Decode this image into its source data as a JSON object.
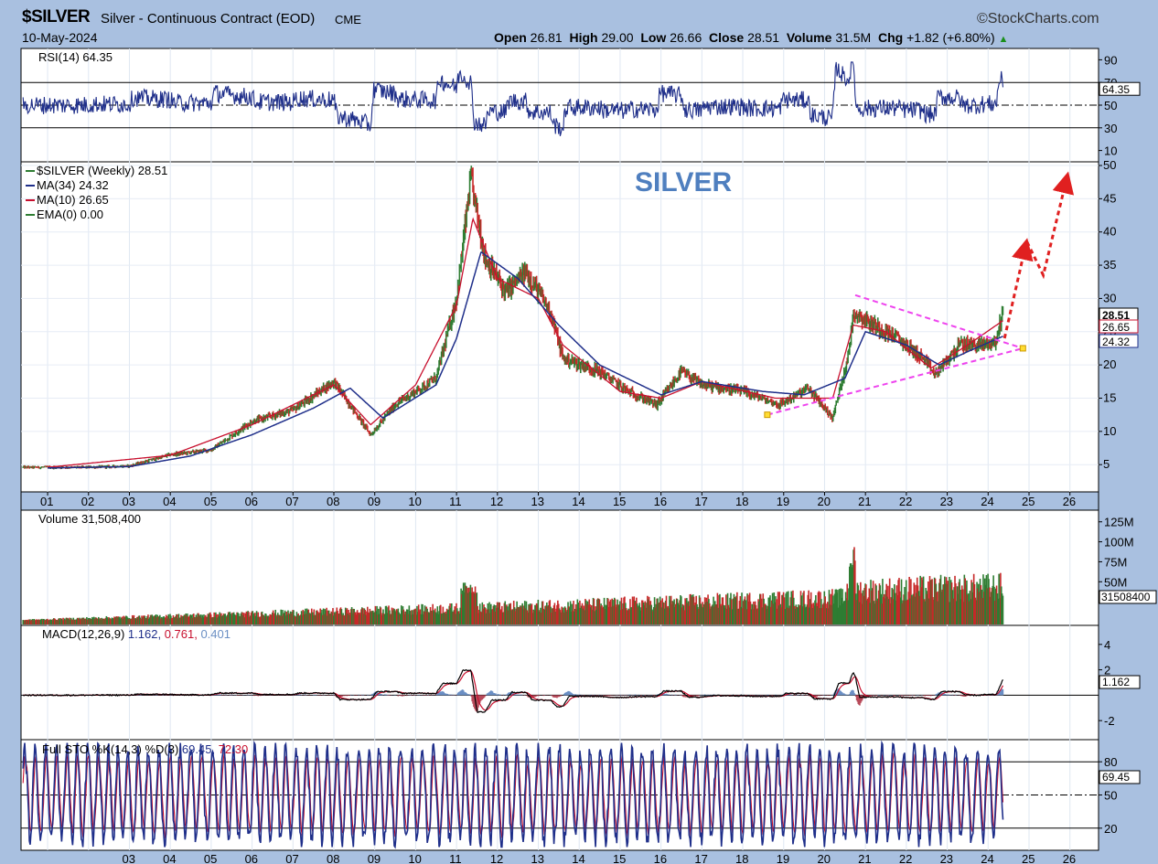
{
  "header": {
    "symbol": "$SILVER",
    "description": "Silver - Continuous Contract (EOD)",
    "exchange": "CME",
    "date": "10-May-2024",
    "brand": "StockCharts.com",
    "open_label": "Open",
    "open": "26.81",
    "high_label": "High",
    "high": "29.00",
    "low_label": "Low",
    "low": "26.66",
    "close_label": "Close",
    "close": "28.51",
    "volume_label": "Volume",
    "volume": "31.5M",
    "chg_label": "Chg",
    "chg": "+1.82 (+6.80%)",
    "chg_arrow": "▲"
  },
  "colors": {
    "panel_bg": "#ffffff",
    "frame_bg": "#a9c0e0",
    "up_bar": "#2e7d32",
    "down_bar": "#c62828",
    "ma_blue": "#1f2f8a",
    "ma_red": "#c8102e",
    "trend_magenta": "#ee44ee",
    "arrow_red": "#e02020",
    "title_blue": "#4f7fbf"
  },
  "chart_data": [
    {
      "type": "line",
      "panel": "rsi",
      "legend": "RSI(14) 64.35",
      "y_ticks": [
        "90",
        "70",
        "50",
        "30",
        "10"
      ],
      "last_value": "64.35",
      "levels": [
        70,
        50,
        30
      ],
      "ylim": [
        0,
        100
      ]
    },
    {
      "type": "candlestick",
      "panel": "price",
      "title": "SILVER",
      "legend": [
        "$SILVER (Weekly) 28.51",
        "MA(34) 24.32",
        "MA(10) 26.65",
        "EMA(0) 0.00"
      ],
      "x_ticks": [
        "01",
        "02",
        "03",
        "04",
        "05",
        "06",
        "07",
        "08",
        "09",
        "10",
        "11",
        "12",
        "13",
        "14",
        "15",
        "16",
        "17",
        "18",
        "19",
        "20",
        "21",
        "22",
        "23",
        "24",
        "25",
        "26"
      ],
      "y_ticks": [
        "50",
        "45",
        "40",
        "35",
        "30",
        "25",
        "20",
        "15",
        "10",
        "5"
      ],
      "ylim": [
        2,
        50
      ],
      "price_labels": [
        "28.51",
        "26.65",
        "24.32"
      ],
      "price_path": [
        [
          2001,
          4.6
        ],
        [
          2002,
          4.6
        ],
        [
          2003,
          4.8
        ],
        [
          2004,
          6.5
        ],
        [
          2005,
          7.2
        ],
        [
          2006,
          11.5
        ],
        [
          2007,
          13.2
        ],
        [
          2008,
          17.5
        ],
        [
          2008.9,
          9.5
        ],
        [
          2009.5,
          14
        ],
        [
          2010.5,
          18
        ],
        [
          2011.0,
          30
        ],
        [
          2011.35,
          48
        ],
        [
          2011.7,
          36
        ],
        [
          2012.2,
          31
        ],
        [
          2012.7,
          34
        ],
        [
          2013.3,
          28
        ],
        [
          2013.6,
          21
        ],
        [
          2014.5,
          19
        ],
        [
          2015.2,
          16
        ],
        [
          2015.9,
          14
        ],
        [
          2016.5,
          19
        ],
        [
          2017,
          17
        ],
        [
          2018,
          16
        ],
        [
          2018.9,
          14
        ],
        [
          2019.6,
          16.5
        ],
        [
          2020.2,
          12
        ],
        [
          2020.6,
          22
        ],
        [
          2020.7,
          28
        ],
        [
          2021.2,
          26
        ],
        [
          2021.8,
          24
        ],
        [
          2022.4,
          21
        ],
        [
          2022.7,
          18.5
        ],
        [
          2023.3,
          23
        ],
        [
          2023.8,
          23
        ],
        [
          2024.2,
          23.5
        ],
        [
          2024.36,
          28.5
        ]
      ],
      "ma34_path": [
        [
          2001,
          4.5
        ],
        [
          2003,
          4.7
        ],
        [
          2004.5,
          6.3
        ],
        [
          2006,
          9.5
        ],
        [
          2007.5,
          13.5
        ],
        [
          2008.4,
          16.5
        ],
        [
          2009.2,
          12
        ],
        [
          2010.5,
          17
        ],
        [
          2011.0,
          24
        ],
        [
          2011.6,
          37
        ],
        [
          2012.5,
          33
        ],
        [
          2013.5,
          26
        ],
        [
          2014.5,
          20
        ],
        [
          2016,
          15.5
        ],
        [
          2017,
          17.5
        ],
        [
          2018.5,
          16
        ],
        [
          2019.5,
          15.5
        ],
        [
          2020.5,
          18
        ],
        [
          2021,
          25
        ],
        [
          2022,
          23
        ],
        [
          2022.8,
          20
        ],
        [
          2023.5,
          22
        ],
        [
          2024.36,
          24.3
        ]
      ],
      "ma10_path": [
        [
          2001,
          4.6
        ],
        [
          2004,
          6.4
        ],
        [
          2006,
          11
        ],
        [
          2008,
          17
        ],
        [
          2008.9,
          11
        ],
        [
          2010,
          17
        ],
        [
          2011,
          29
        ],
        [
          2011.4,
          42
        ],
        [
          2012,
          33
        ],
        [
          2013,
          30
        ],
        [
          2013.6,
          23
        ],
        [
          2015,
          16
        ],
        [
          2016,
          15
        ],
        [
          2017,
          17.5
        ],
        [
          2018.8,
          15
        ],
        [
          2020.2,
          15
        ],
        [
          2020.7,
          26
        ],
        [
          2021.5,
          25
        ],
        [
          2022.6,
          19.5
        ],
        [
          2023.5,
          23
        ],
        [
          2024.36,
          26.65
        ]
      ],
      "trendlines": [
        {
          "from": [
            2020.75,
            30.5
          ],
          "to": [
            2024.85,
            22.5
          ]
        },
        {
          "from": [
            2018.6,
            12.5
          ],
          "to": [
            2024.85,
            22.5
          ]
        }
      ],
      "projection_arrows": [
        {
          "from": [
            2024.4,
            24
          ],
          "to": [
            2024.9,
            37.5
          ]
        },
        {
          "path": [
            [
              2024.95,
              38.5
            ],
            [
              2025.35,
              33.5
            ],
            [
              2025.9,
              47.5
            ]
          ]
        }
      ]
    },
    {
      "type": "bar",
      "panel": "volume",
      "legend": "Volume 31,508,400",
      "y_ticks": [
        "125M",
        "100M",
        "75M",
        "50M"
      ],
      "last_value": "31508400",
      "ylim": [
        0,
        135
      ]
    },
    {
      "type": "line",
      "panel": "macd",
      "legend": [
        "MACD(12,26,9)",
        "1.162",
        "0.761",
        "0.401"
      ],
      "y_ticks": [
        "4",
        "2",
        "-2"
      ],
      "last_value": "1.162",
      "ylim": [
        -3.5,
        5.5
      ]
    },
    {
      "type": "line",
      "panel": "sto",
      "legend": [
        "Full STO %K(14,3) %D(3)",
        "69.45",
        "72.30"
      ],
      "y_ticks": [
        "80",
        "50",
        "20"
      ],
      "last_value": "69.45",
      "levels": [
        80,
        50,
        20
      ],
      "ylim": [
        0,
        100
      ]
    }
  ]
}
